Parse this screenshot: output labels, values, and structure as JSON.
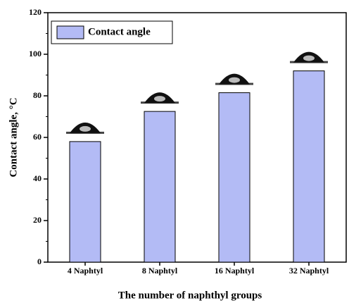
{
  "chart_data": {
    "type": "bar",
    "x_label": "The number of naphthyl groups",
    "y_label": "Contact angle, °C",
    "categories": [
      "4 Naphtyl",
      "8 Naphtyl",
      "16 Naphtyl",
      "32 Naphtyl"
    ],
    "series": [
      {
        "name": "Contact angle",
        "color": "#b3bbf5",
        "values": [
          58,
          72.5,
          81.5,
          92
        ]
      }
    ],
    "ylim": [
      0,
      120
    ],
    "yticks": [
      0,
      20,
      40,
      60,
      80,
      100,
      120
    ],
    "legend": "upper left"
  }
}
